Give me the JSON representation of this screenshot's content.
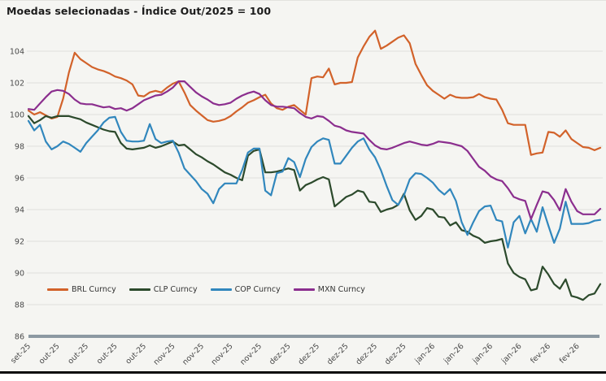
{
  "title": "Moedas selecionadas - Índice Out/2025 = 100",
  "colors": {
    "background": "#F5F5F2",
    "gridline": "#E0E0DC",
    "baseline": "#8C99A2",
    "tick_text": "#4a4a4a",
    "brl": "#D2622A",
    "clp": "#2C4A2C",
    "cop": "#3187BD",
    "mxn": "#8B2E8E"
  },
  "chart_data": {
    "type": "line",
    "title": "Moedas selecionadas - Índice Out/2025 = 100",
    "index_base_note": "Out/2025 = 100",
    "grid": true,
    "legend_position": "inside-bottom-left",
    "ylim": [
      86,
      105.5
    ],
    "y_ticks": [
      86,
      88,
      90,
      92,
      94,
      96,
      98,
      100,
      102,
      104
    ],
    "n_points": 100,
    "x_tick_indices": [
      0,
      5,
      10,
      15,
      20,
      25,
      30,
      35,
      40,
      45,
      50,
      55,
      60,
      65,
      70,
      75,
      80,
      85,
      90,
      95
    ],
    "x_tick_labels": [
      "set-25",
      "out-25",
      "out-25",
      "out-25",
      "out-25",
      "nov-25",
      "nov-25",
      "nov-25",
      "nov-25",
      "dez-25",
      "dez-25",
      "dez-25",
      "dez-25",
      "dez-25",
      "jan-26",
      "jan-26",
      "jan-26",
      "jan-26",
      "fev-26",
      "fev-26"
    ],
    "series": [
      {
        "name": "BRL Curncy",
        "color": "#D2622A",
        "values": [
          100.25,
          100.0,
          100.15,
          99.95,
          99.75,
          99.85,
          101.0,
          102.65,
          103.9,
          103.5,
          103.25,
          103.0,
          102.85,
          102.75,
          102.6,
          102.4,
          102.3,
          102.15,
          101.9,
          101.2,
          101.15,
          101.4,
          101.5,
          101.4,
          101.7,
          101.95,
          102.1,
          101.4,
          100.6,
          100.25,
          99.95,
          99.65,
          99.55,
          99.6,
          99.7,
          99.9,
          100.2,
          100.45,
          100.75,
          100.9,
          101.1,
          101.25,
          100.7,
          100.4,
          100.3,
          100.5,
          100.6,
          100.3,
          100.0,
          102.3,
          102.4,
          102.35,
          102.9,
          101.9,
          102.0,
          102.0,
          102.05,
          103.6,
          104.3,
          104.9,
          105.3,
          104.15,
          104.35,
          104.6,
          104.85,
          105.0,
          104.5,
          103.2,
          102.5,
          101.85,
          101.5,
          101.25,
          101.0,
          101.25,
          101.1,
          101.05,
          101.05,
          101.1,
          101.3,
          101.1,
          101.0,
          100.95,
          100.3,
          99.45,
          99.35,
          99.35,
          99.35,
          97.45,
          97.55,
          97.6,
          98.9,
          98.85,
          98.6,
          99.0,
          98.45,
          98.2,
          97.95,
          97.9,
          97.75,
          97.9
        ]
      },
      {
        "name": "CLP Curncy",
        "color": "#2C4A2C",
        "values": [
          99.9,
          99.45,
          99.65,
          99.9,
          99.8,
          99.9,
          99.9,
          99.9,
          99.8,
          99.7,
          99.5,
          99.35,
          99.2,
          99.05,
          98.95,
          98.9,
          98.2,
          97.85,
          97.8,
          97.85,
          97.9,
          98.05,
          97.9,
          98.0,
          98.15,
          98.3,
          98.05,
          98.1,
          97.8,
          97.5,
          97.3,
          97.05,
          96.85,
          96.6,
          96.35,
          96.2,
          96.0,
          95.85,
          97.4,
          97.7,
          97.8,
          96.35,
          96.35,
          96.4,
          96.5,
          96.6,
          96.5,
          95.2,
          95.55,
          95.7,
          95.9,
          96.05,
          95.9,
          94.2,
          94.5,
          94.8,
          94.95,
          95.2,
          95.1,
          94.5,
          94.45,
          93.85,
          94.0,
          94.1,
          94.3,
          95.0,
          93.95,
          93.35,
          93.6,
          94.1,
          94.0,
          93.55,
          93.5,
          93.0,
          93.2,
          92.7,
          92.6,
          92.35,
          92.2,
          91.9,
          92.0,
          92.05,
          92.15,
          90.6,
          90.0,
          89.75,
          89.6,
          88.9,
          89.0,
          90.4,
          89.9,
          89.3,
          89.0,
          89.6,
          88.55,
          88.45,
          88.3,
          88.6,
          88.7,
          89.3
        ]
      },
      {
        "name": "COP Curncy",
        "color": "#3187BD",
        "values": [
          99.6,
          99.0,
          99.35,
          98.3,
          97.8,
          98.0,
          98.3,
          98.15,
          97.9,
          97.65,
          98.2,
          98.6,
          99.0,
          99.5,
          99.8,
          99.85,
          98.9,
          98.35,
          98.3,
          98.3,
          98.35,
          99.4,
          98.45,
          98.2,
          98.3,
          98.35,
          97.6,
          96.6,
          96.2,
          95.8,
          95.3,
          95.0,
          94.4,
          95.3,
          95.65,
          95.65,
          95.65,
          96.5,
          97.6,
          97.85,
          97.85,
          95.2,
          94.9,
          96.3,
          96.4,
          97.25,
          97.0,
          96.05,
          97.2,
          97.95,
          98.3,
          98.5,
          98.4,
          96.9,
          96.9,
          97.4,
          97.9,
          98.3,
          98.5,
          97.8,
          97.3,
          96.5,
          95.5,
          94.6,
          94.3,
          94.9,
          95.9,
          96.3,
          96.25,
          96.0,
          95.7,
          95.25,
          94.95,
          95.3,
          94.55,
          93.2,
          92.4,
          93.2,
          93.9,
          94.2,
          94.25,
          93.35,
          93.25,
          91.6,
          93.2,
          93.6,
          92.5,
          93.4,
          92.6,
          94.15,
          93.0,
          91.9,
          92.8,
          94.5,
          93.1,
          93.1,
          93.1,
          93.15,
          93.3,
          93.35
        ]
      },
      {
        "name": "MXN Curncy",
        "color": "#8B2E8E",
        "values": [
          100.35,
          100.3,
          100.7,
          101.1,
          101.45,
          101.55,
          101.5,
          101.3,
          100.95,
          100.7,
          100.65,
          100.65,
          100.55,
          100.45,
          100.5,
          100.35,
          100.4,
          100.25,
          100.4,
          100.65,
          100.9,
          101.05,
          101.2,
          101.25,
          101.45,
          101.7,
          102.1,
          102.1,
          101.75,
          101.4,
          101.15,
          100.95,
          100.7,
          100.6,
          100.65,
          100.75,
          101.0,
          101.2,
          101.35,
          101.45,
          101.3,
          100.9,
          100.6,
          100.5,
          100.5,
          100.45,
          100.4,
          100.1,
          99.85,
          99.75,
          99.9,
          99.85,
          99.6,
          99.3,
          99.2,
          99.0,
          98.9,
          98.85,
          98.8,
          98.4,
          98.05,
          97.85,
          97.8,
          97.9,
          98.05,
          98.2,
          98.3,
          98.2,
          98.1,
          98.05,
          98.15,
          98.3,
          98.25,
          98.2,
          98.1,
          98.0,
          97.7,
          97.2,
          96.7,
          96.45,
          96.1,
          95.9,
          95.8,
          95.35,
          94.8,
          94.65,
          94.55,
          93.4,
          94.3,
          95.15,
          95.05,
          94.6,
          93.95,
          95.3,
          94.5,
          93.9,
          93.7,
          93.7,
          93.7,
          94.05
        ]
      }
    ]
  }
}
